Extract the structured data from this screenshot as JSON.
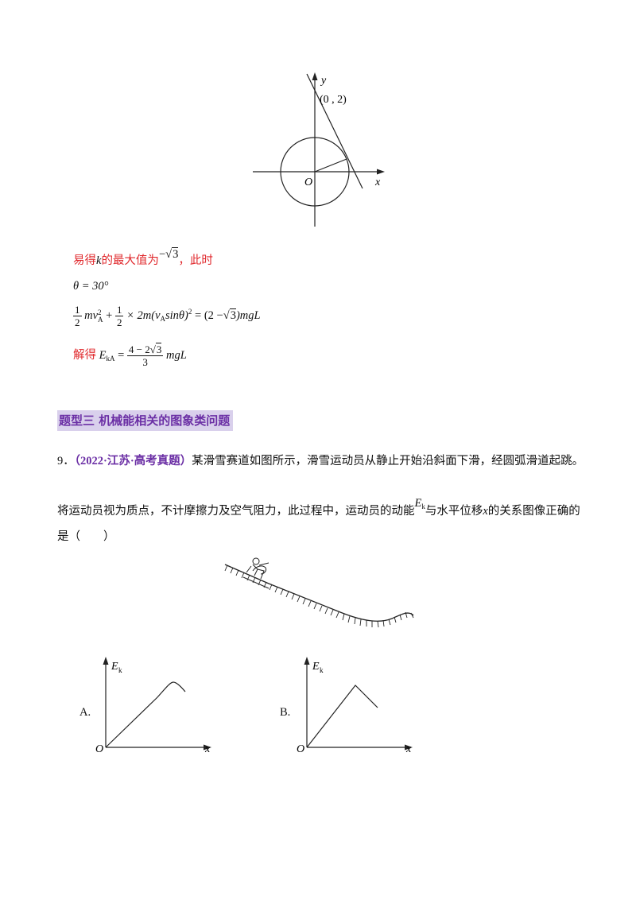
{
  "figure_top": {
    "y_label": "y",
    "x_label": "x",
    "origin_label": "O",
    "point_label": "(0 , 2)"
  },
  "solution": {
    "line1_pre": "易得",
    "line1_k": "k",
    "line1_mid": "的最大值为",
    "line1_neg": "−",
    "line1_rad": "3",
    "line1_post": "，此时",
    "theta_eq": "θ = 30°",
    "eq2_half": "1",
    "eq2_den": "2",
    "eq2_mv": "mv",
    "eq2_A": "A",
    "eq2_sq": "2",
    "eq2_plus": "+",
    "eq2_times": "× 2m",
    "eq2_inner": "(v",
    "eq2_sin": "sinθ)",
    "eq2_sq2": "2",
    "eq2_eq": "=",
    "eq2_rhs_open": "(2 −",
    "eq2_rhs_rad": "3",
    "eq2_rhs_close": ")mgL",
    "solve_label": "解得",
    "solve_E": "E",
    "solve_kA": "kA",
    "solve_eq": "=",
    "solve_num_a": "4 − 2",
    "solve_num_rad": "3",
    "solve_den": "3",
    "solve_tail": "mgL"
  },
  "section": {
    "title": "题型三  机械能相关的图象类问题"
  },
  "question": {
    "number": "9．",
    "source": "（2022·江苏·高考真题）",
    "text_line1": "某滑雪赛道如图所示，滑雪运动员从静止开始沿斜面下滑，经圆弧滑道起跳。",
    "text_line2_a": "将运动员视为质点，不计摩擦力及空气阻力，此过程中，运动员的动能",
    "E": "E",
    "k": "k",
    "text_line2_b": "与水平位移",
    "x_var": "x",
    "text_line2_c": "的关系图像正确的",
    "text_line3": "是（　　）"
  },
  "options": [
    {
      "label": "A.",
      "y_axis": "E",
      "y_sub": "k",
      "x_axis": "x",
      "origin": "O"
    },
    {
      "label": "B.",
      "y_axis": "E",
      "y_sub": "k",
      "x_axis": "x",
      "origin": "O"
    }
  ]
}
